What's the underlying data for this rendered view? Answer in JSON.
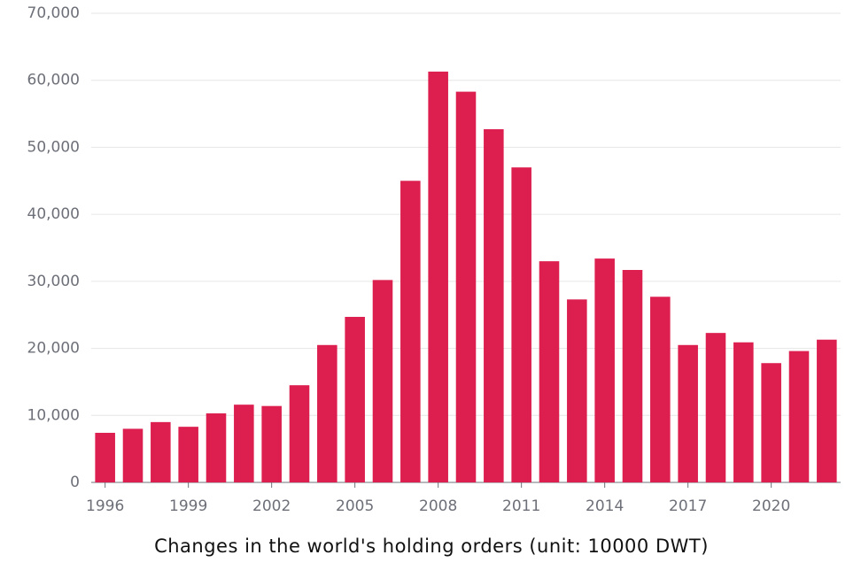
{
  "chart_data": {
    "type": "bar",
    "title": "Changes in the world's holding orders (unit: 10000 DWT)",
    "categories": [
      "1996",
      null,
      null,
      "1999",
      null,
      null,
      "2002",
      null,
      null,
      "2005",
      null,
      null,
      "2008",
      null,
      null,
      "2011",
      null,
      null,
      "2014",
      null,
      null,
      "2017",
      null,
      null,
      "2020",
      null,
      null
    ],
    "values": [
      7400,
      8000,
      9000,
      8300,
      10300,
      11600,
      11400,
      14500,
      20500,
      24700,
      30200,
      45000,
      61300,
      58300,
      52700,
      47000,
      33000,
      27300,
      33400,
      31700,
      27700,
      20500,
      22300,
      20900,
      17800,
      19600,
      21300
    ],
    "color": "#dc1f4f",
    "ylim": [
      0,
      70000
    ],
    "yticks": [
      0,
      {
        "value": 10000,
        "label": "10,000"
      },
      {
        "value": 20000,
        "label": "20,000"
      },
      {
        "value": 30000,
        "label": "30,000"
      },
      {
        "value": 40000,
        "label": "40,000"
      },
      {
        "value": 50000,
        "label": "50,000"
      },
      {
        "value": 60000,
        "label": "60,000"
      },
      {
        "value": 70000,
        "label": "70,000"
      }
    ],
    "grid": true
  }
}
